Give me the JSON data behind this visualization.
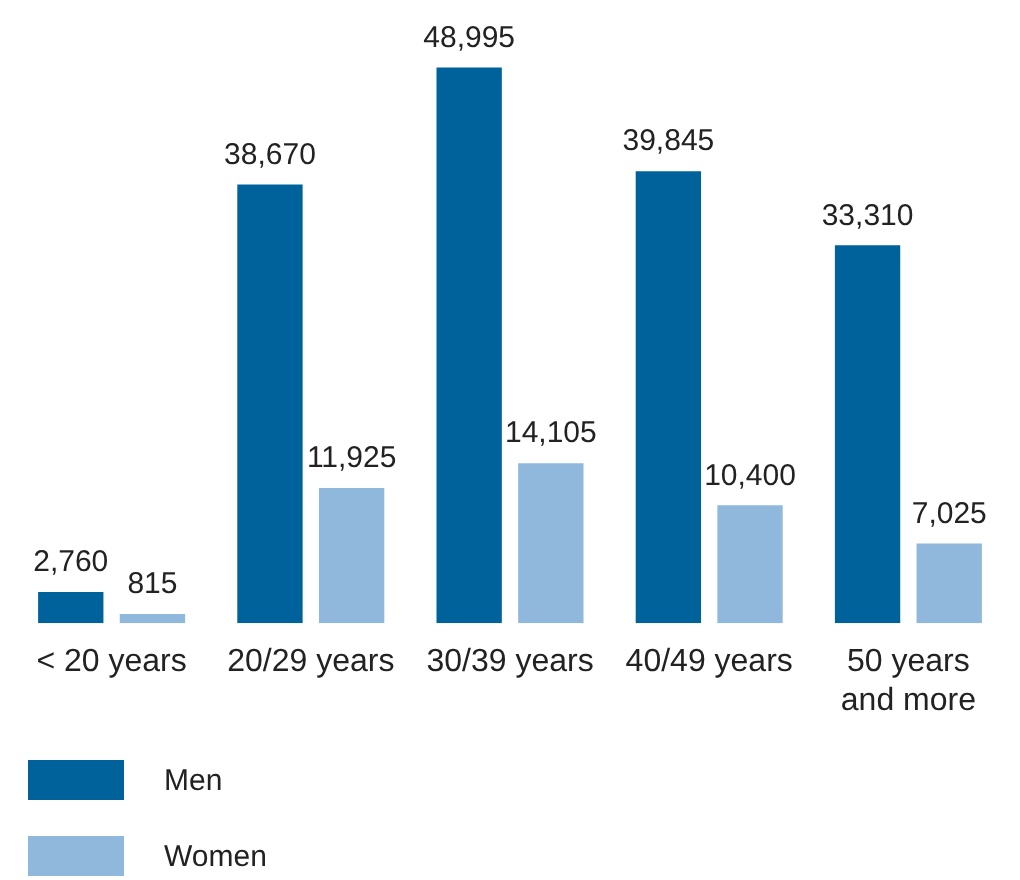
{
  "chart_data": {
    "type": "bar",
    "categories": [
      "< 20 years",
      "20/29 years",
      "30/39 years",
      "40/49 years",
      "50 years and more"
    ],
    "series": [
      {
        "name": "Men",
        "color": "#00629b",
        "values": [
          2760,
          38670,
          48995,
          39845,
          33310
        ],
        "value_labels": [
          "2,760",
          "38,670",
          "48,995",
          "39,845",
          "33,310"
        ]
      },
      {
        "name": "Women",
        "color": "#8fb8dc",
        "values": [
          815,
          11925,
          14105,
          10400,
          7025
        ],
        "value_labels": [
          "815",
          "11,925",
          "14,105",
          "10,400",
          "7,025"
        ]
      }
    ],
    "legend": "bottom left",
    "grid": false,
    "tick_labels": "x"
  }
}
